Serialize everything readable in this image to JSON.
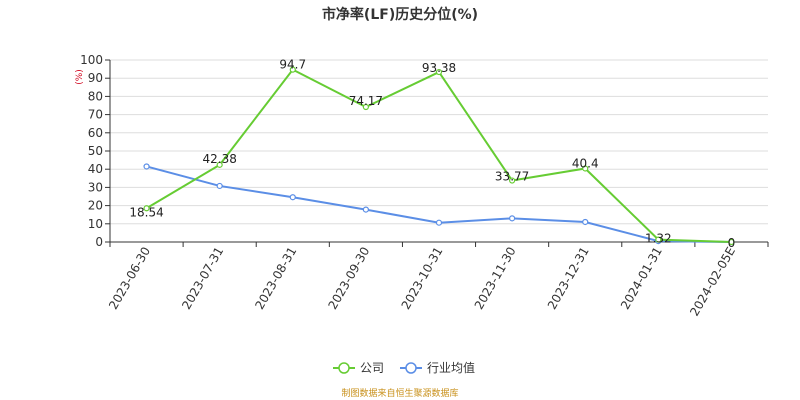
{
  "chart_data": {
    "type": "line",
    "title": "市净率(LF)历史分位(%)",
    "y_unit": "(%)",
    "categories": [
      "2023-06-30",
      "2023-07-31",
      "2023-08-31",
      "2023-09-30",
      "2023-10-31",
      "2023-11-30",
      "2023-12-31",
      "2024-01-31",
      "2024-02-05E"
    ],
    "ylim": [
      0,
      100
    ],
    "yticks": [
      0,
      10,
      20,
      30,
      40,
      50,
      60,
      70,
      80,
      90,
      100
    ],
    "grid": true,
    "legend_position": "bottom-center",
    "series": [
      {
        "name": "公司",
        "color": "#66cc33",
        "values": [
          18.54,
          42.38,
          94.7,
          74.17,
          93.38,
          33.77,
          40.4,
          1.32,
          0
        ],
        "labels": [
          "18.54",
          "42.38",
          "94.7",
          "74.17",
          "93.38",
          "33.77",
          "40.4",
          "1.32",
          "0"
        ]
      },
      {
        "name": "行业均值",
        "color": "#5b8ee6",
        "values": [
          41.5,
          30.8,
          24.6,
          17.8,
          10.6,
          13.0,
          11.0,
          0.5,
          0
        ]
      }
    ]
  },
  "source_note": "制图数据来自恒生聚源数据库"
}
